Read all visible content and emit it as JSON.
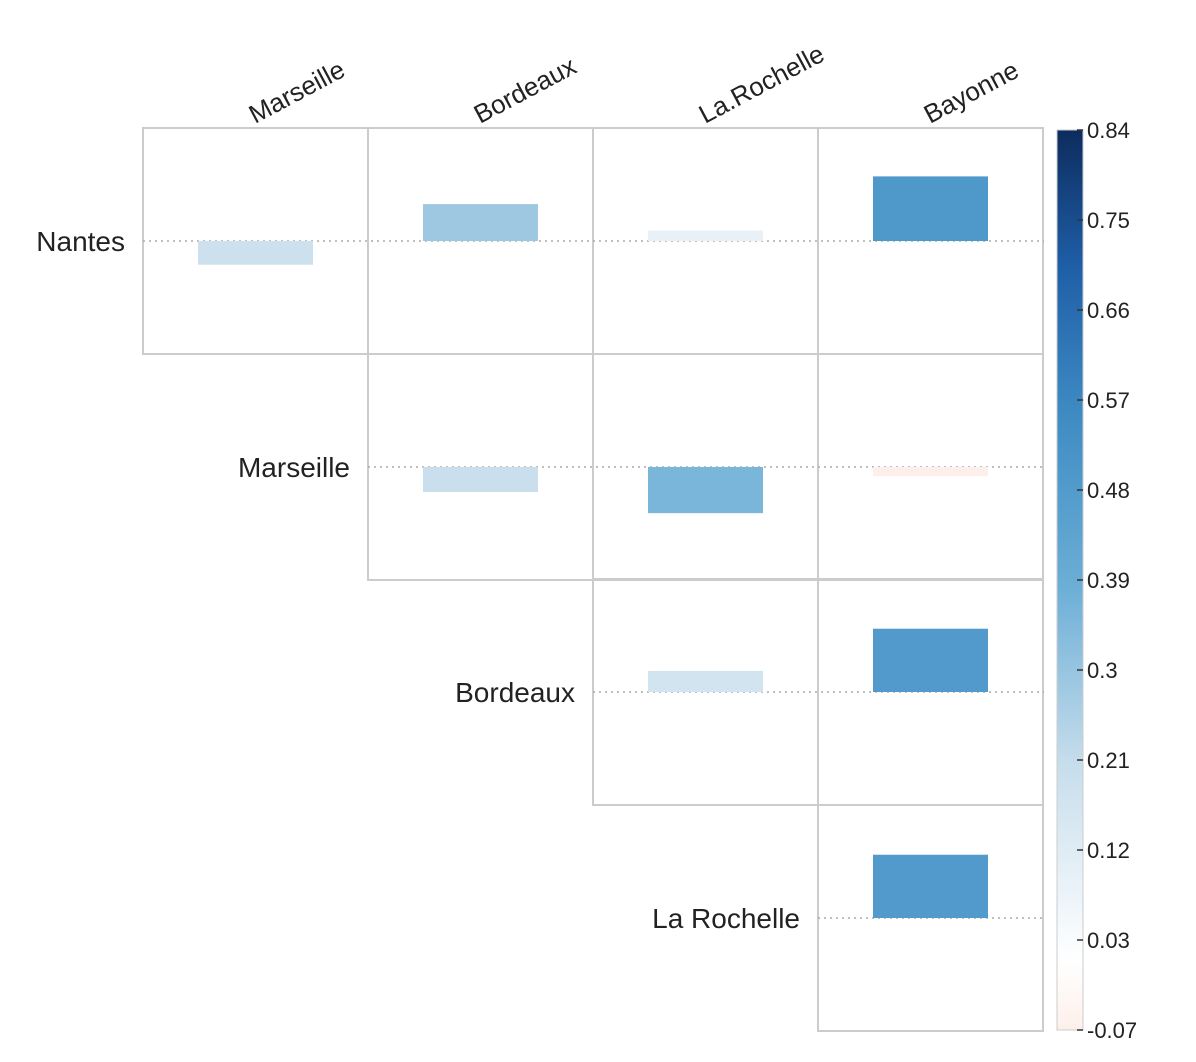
{
  "chart_data": {
    "type": "heatmap",
    "subtype": "correlation-bar-matrix",
    "layout": "upper-triangle",
    "column_labels": [
      "Marseille",
      "Bordeaux",
      "La.Rochelle",
      "Bayonne"
    ],
    "row_labels": [
      "Nantes",
      "Marseille",
      "Bordeaux",
      "La Rochelle"
    ],
    "value_range": [
      -0.07,
      0.84
    ],
    "cells": [
      {
        "row": "Nantes",
        "col": "Marseille",
        "value": -0.18
      },
      {
        "row": "Nantes",
        "col": "Bordeaux",
        "value": 0.28
      },
      {
        "row": "Nantes",
        "col": "La.Rochelle",
        "value": 0.08
      },
      {
        "row": "Nantes",
        "col": "Bayonne",
        "value": 0.49
      },
      {
        "row": "Marseille",
        "col": "Bordeaux",
        "value": -0.19
      },
      {
        "row": "Marseille",
        "col": "La.Rochelle",
        "value": -0.35
      },
      {
        "row": "Marseille",
        "col": "Bayonne",
        "value": -0.07
      },
      {
        "row": "Bordeaux",
        "col": "La.Rochelle",
        "value": 0.16
      },
      {
        "row": "Bordeaux",
        "col": "Bayonne",
        "value": 0.48
      },
      {
        "row": "La Rochelle",
        "col": "Bayonne",
        "value": 0.48
      }
    ],
    "colorbar": {
      "ticks": [
        "0.84",
        "0.75",
        "0.66",
        "0.57",
        "0.48",
        "0.39",
        "0.3",
        "0.21",
        "0.12",
        "0.03",
        "-0.07"
      ],
      "colors": {
        "low": "#fdf0ea",
        "zero": "#ffffff",
        "light": "#c6ddec",
        "mid": "#6baed6",
        "strong": "#3f8cc3",
        "high": "#1f5fa8",
        "max": "#0d2c5e"
      }
    },
    "gridlines": "dotted-baseline",
    "grid_color": "#cccccc"
  }
}
